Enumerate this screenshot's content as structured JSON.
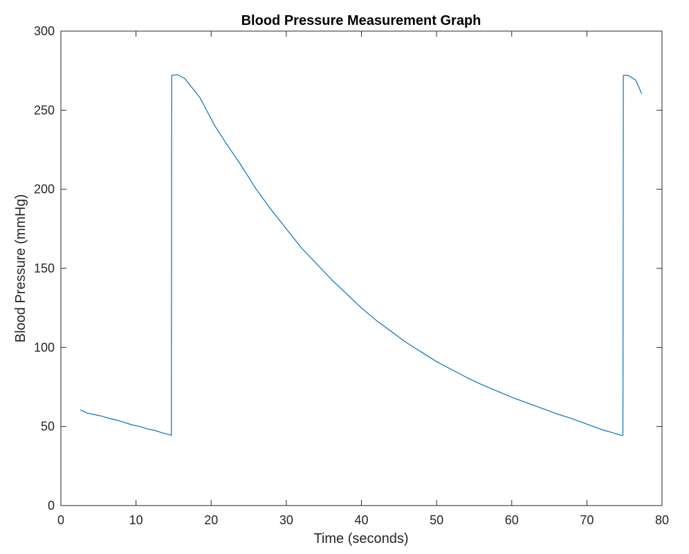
{
  "chart_data": {
    "type": "line",
    "title": "Blood Pressure Measurement Graph",
    "xlabel": "Time (seconds)",
    "ylabel": "Blood Pressure (mmHg)",
    "xlim": [
      0,
      80
    ],
    "ylim": [
      0,
      300
    ],
    "xticks": [
      0,
      10,
      20,
      30,
      40,
      50,
      60,
      70,
      80
    ],
    "yticks": [
      0,
      50,
      100,
      150,
      200,
      250,
      300
    ],
    "xtick_labels": [
      "0",
      "10",
      "20",
      "30",
      "40",
      "50",
      "60",
      "70",
      "80"
    ],
    "ytick_labels": [
      "0",
      "50",
      "100",
      "150",
      "200",
      "250",
      "300"
    ],
    "grid": false,
    "line_color": "#0072BD",
    "series": [
      {
        "x": [
          2.6,
          3.5,
          4.5,
          5.5,
          6.5,
          7.5,
          8.5,
          9.5,
          10.5,
          11.5,
          12.5,
          13.5,
          14.3,
          14.7,
          14.75,
          15.5,
          16.5,
          17.5,
          18.5,
          19.5,
          20.5,
          22,
          24,
          26,
          28,
          30,
          32,
          34,
          36,
          38,
          40,
          42,
          44,
          46,
          48,
          50,
          52,
          54,
          56,
          58,
          60,
          62,
          64,
          66,
          68,
          70,
          72,
          73.5,
          74.5,
          74.8,
          74.85,
          75.5,
          76.5,
          77.3
        ],
        "y": [
          60.5,
          58.5,
          57.5,
          56.5,
          55,
          54,
          52.5,
          51,
          50,
          48.5,
          47.5,
          46,
          45,
          44.5,
          272,
          272.5,
          270,
          264,
          258,
          249,
          240,
          229,
          215,
          200,
          187,
          175,
          163,
          153,
          143,
          134,
          125,
          117,
          110,
          103,
          97,
          91,
          86,
          81,
          76.5,
          72.5,
          68.5,
          65,
          61.5,
          58,
          55,
          51.5,
          48,
          46,
          44.5,
          44.5,
          272,
          272,
          269,
          260.5
        ]
      }
    ]
  }
}
